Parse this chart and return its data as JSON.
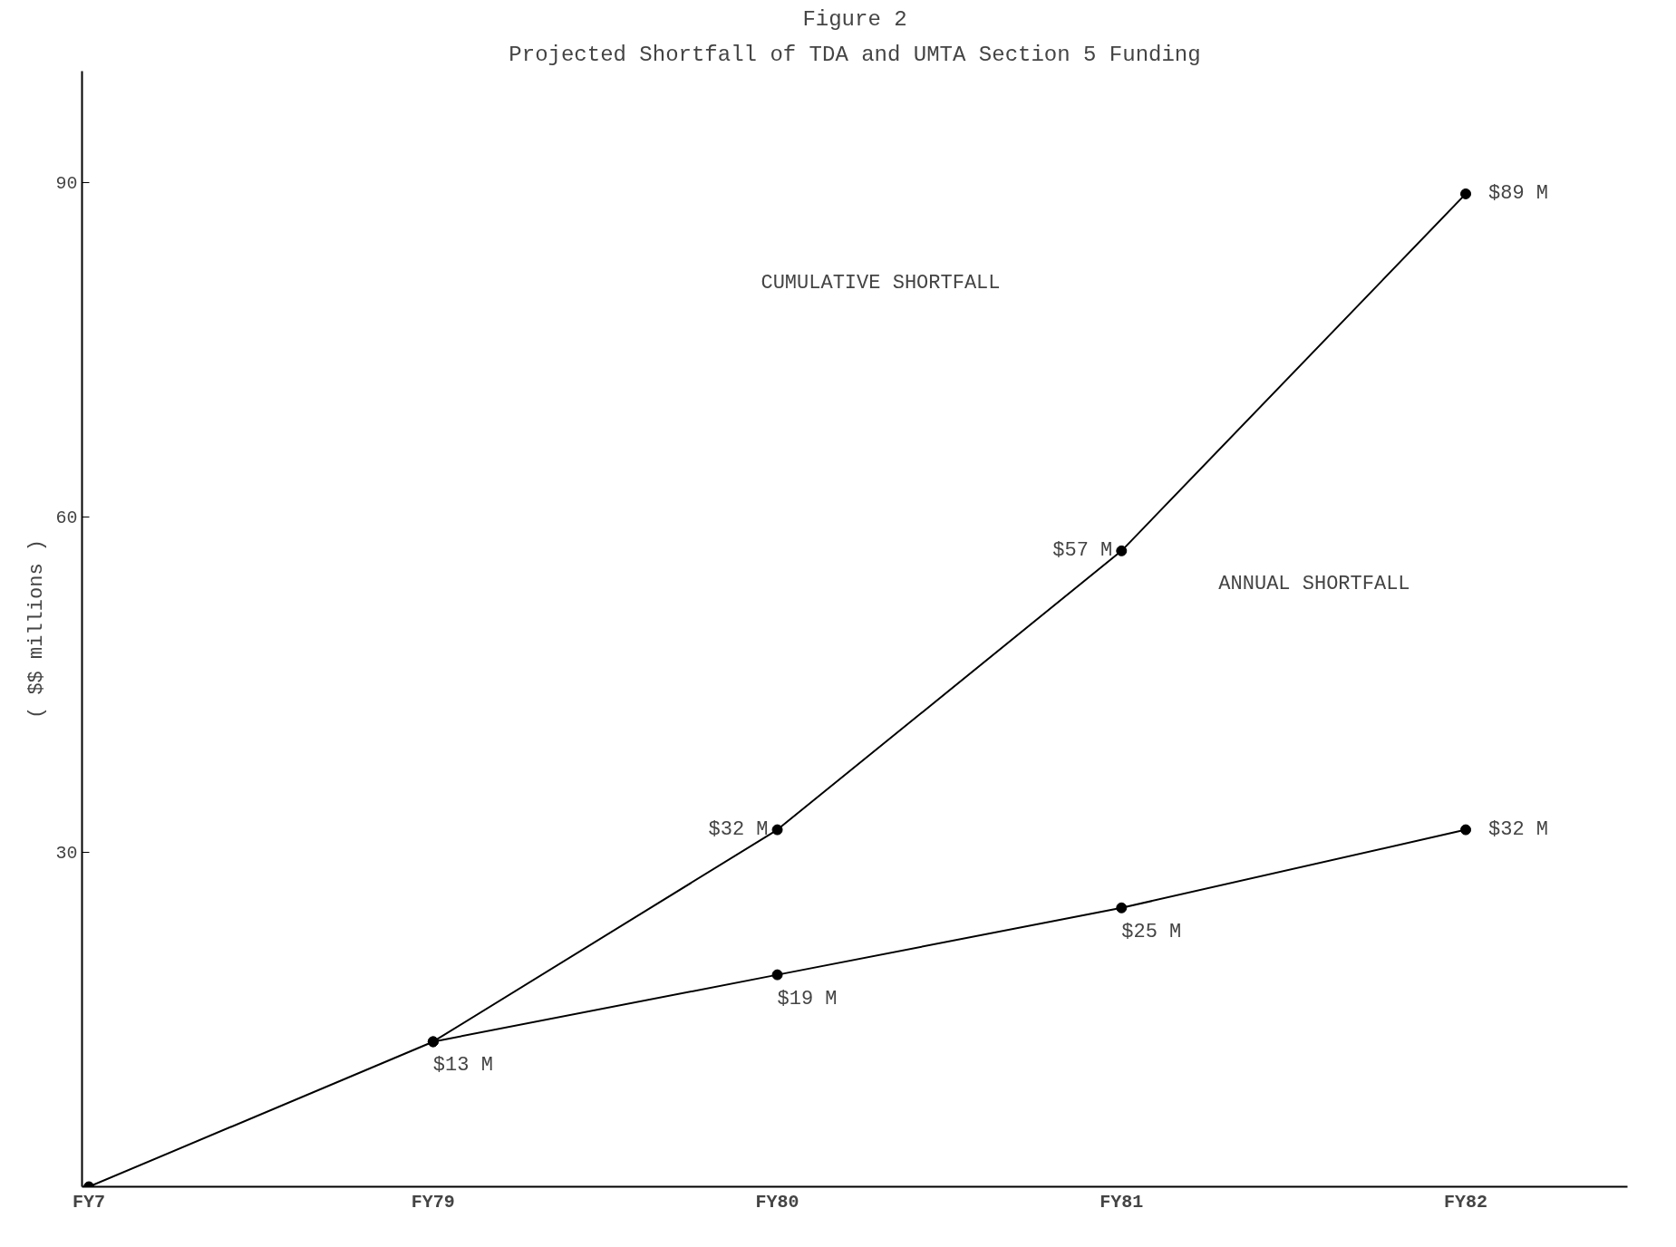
{
  "chart_data": {
    "type": "line",
    "title": "Figure 2",
    "subtitle": "Projected Shortfall of TDA and UMTA Section 5 Funding",
    "ylabel": "( $$ millions )",
    "categories": [
      "FY7",
      "FY79",
      "FY80",
      "FY81",
      "FY82"
    ],
    "series": [
      {
        "color": "#000000",
        "values": [
          0,
          13,
          32,
          57,
          89
        ],
        "value_labels": [
          null,
          null,
          "$32 M",
          "$57 M",
          "$89 M"
        ]
      },
      {
        "color": "#000000",
        "values": [
          null,
          13,
          19,
          25,
          32
        ],
        "value_labels": [
          null,
          "$13 M",
          "$19 M",
          "$25 M",
          "$32 M"
        ]
      }
    ],
    "annotations": [
      "CUMULATIVE SHORTFALL",
      "ANNUAL SHORTFALL"
    ],
    "ylim": [
      0,
      100
    ],
    "yticks": [
      30,
      60,
      90
    ],
    "marker": "circle",
    "line_style": "solid",
    "grid": false
  }
}
